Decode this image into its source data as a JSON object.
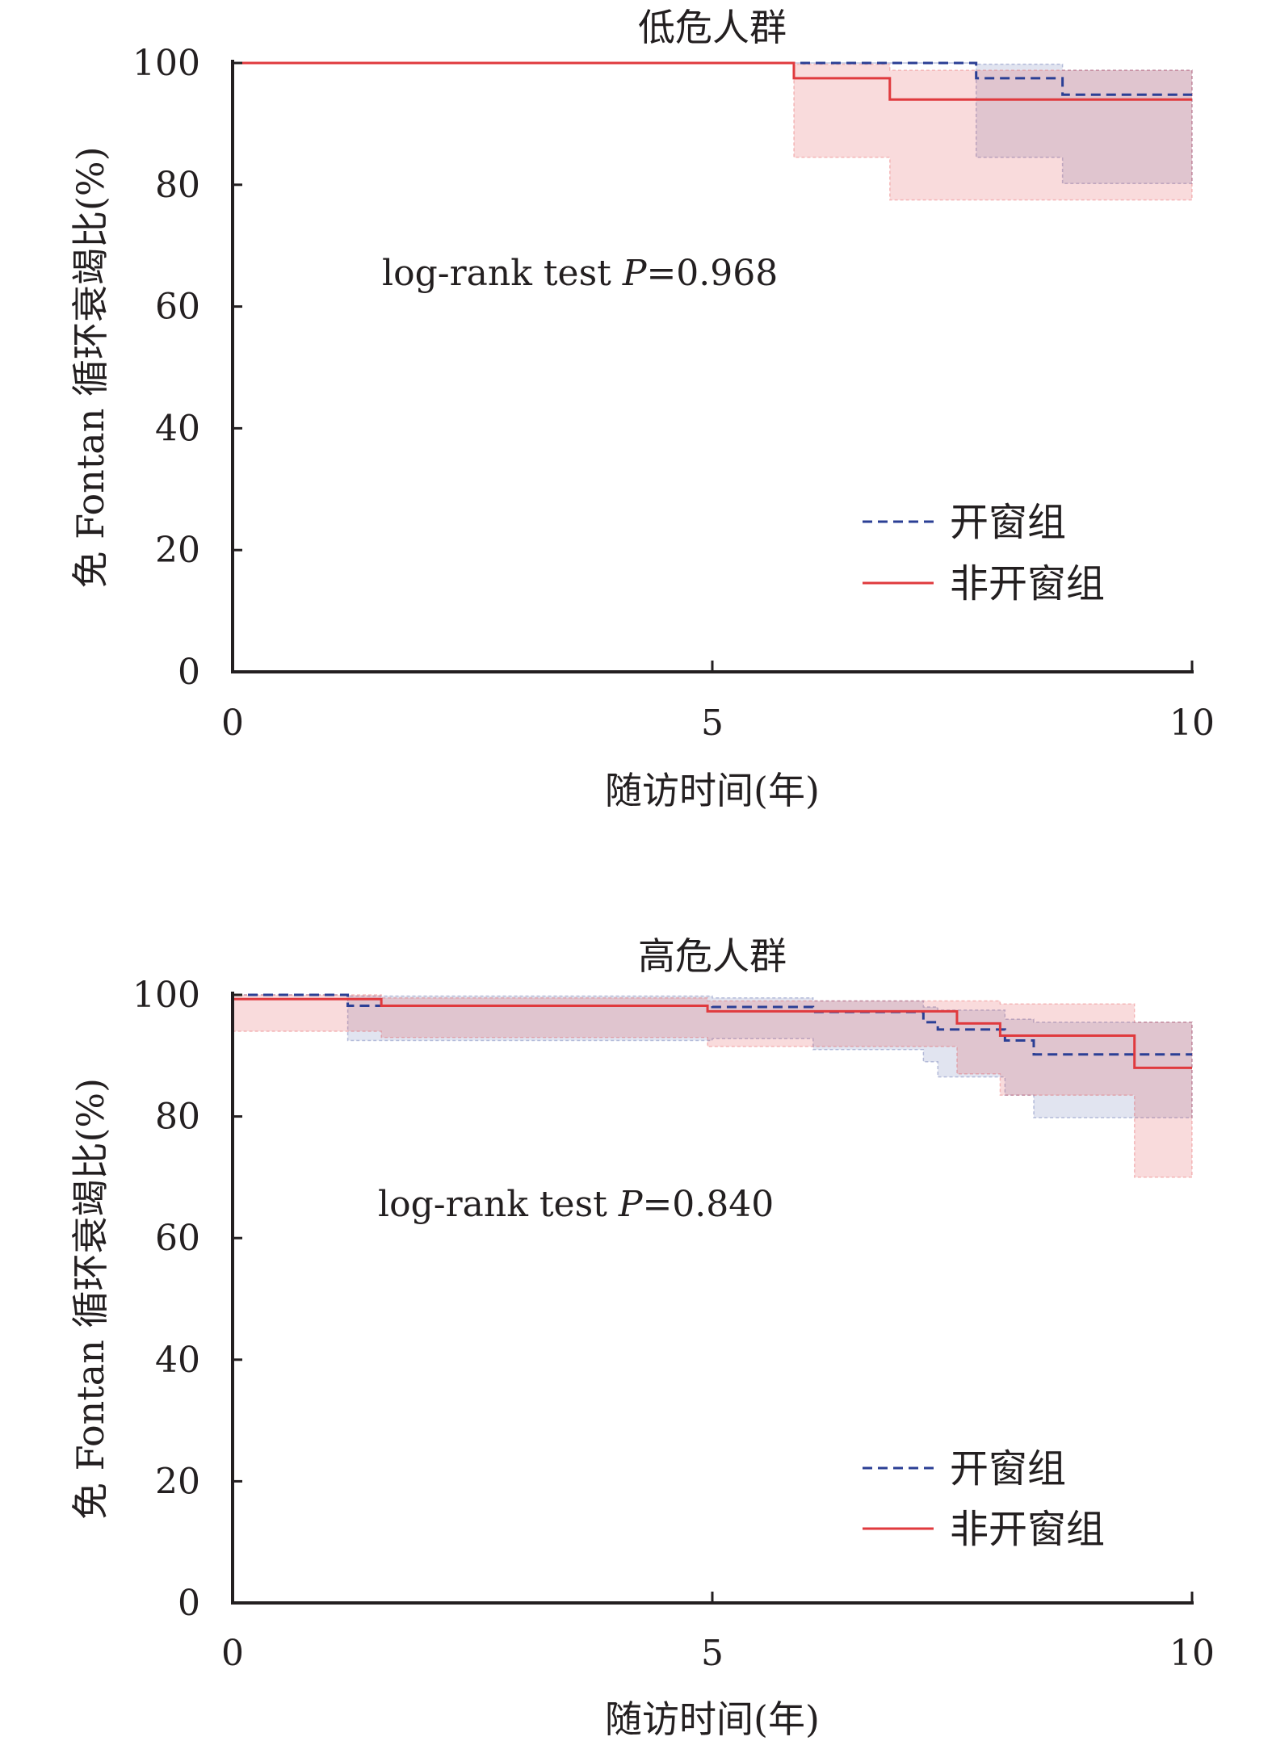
{
  "chart_data": [
    {
      "type": "line",
      "subtype": "kaplan-meier-step",
      "title": "低危人群",
      "xlabel": "随访时间(年)",
      "ylabel": "免 Fontan 循环衰竭比(%)",
      "xlim": [
        0,
        10
      ],
      "ylim": [
        0,
        100
      ],
      "xticks": [
        0,
        5,
        10
      ],
      "yticks": [
        0,
        20,
        40,
        60,
        80,
        100
      ],
      "grid": false,
      "legend_position": "bottom-right",
      "annotation": {
        "prefix": "log-rank test ",
        "italic": "P",
        "suffix": "=0.968"
      },
      "series": [
        {
          "name": "开窗组",
          "color": "#2b3f95",
          "dash": true,
          "steps": [
            [
              0,
              100
            ],
            [
              7.75,
              97.5
            ],
            [
              8.65,
              94.8
            ],
            [
              10,
              94.8
            ]
          ],
          "ci": [
            [
              0,
              100,
              100
            ],
            [
              7.75,
              84.5,
              99.8
            ],
            [
              8.65,
              80.2,
              98.8
            ],
            [
              10,
              80.2,
              98.8
            ]
          ]
        },
        {
          "name": "非开窗组",
          "color": "#e03a3e",
          "dash": false,
          "steps": [
            [
              0,
              100
            ],
            [
              5.85,
              97.5
            ],
            [
              6.85,
              94.0
            ],
            [
              10,
              94.0
            ]
          ],
          "ci": [
            [
              0,
              100,
              100
            ],
            [
              5.85,
              84.5,
              99.8
            ],
            [
              6.85,
              77.5,
              98.8
            ],
            [
              10,
              77.5,
              98.8
            ]
          ]
        }
      ]
    },
    {
      "type": "line",
      "subtype": "kaplan-meier-step",
      "title": "高危人群",
      "xlabel": "随访时间(年)",
      "ylabel": "免 Fontan 循环衰竭比(%)",
      "xlim": [
        0,
        10
      ],
      "ylim": [
        0,
        100
      ],
      "xticks": [
        0,
        5,
        10
      ],
      "yticks": [
        0,
        20,
        40,
        60,
        80,
        100
      ],
      "grid": false,
      "legend_position": "bottom-right",
      "annotation": {
        "prefix": "log-rank test ",
        "italic": "P",
        "suffix": "=0.840"
      },
      "series": [
        {
          "name": "开窗组",
          "color": "#2b3f95",
          "dash": true,
          "steps": [
            [
              0,
              100
            ],
            [
              1.2,
              98.2
            ],
            [
              5.0,
              98.0
            ],
            [
              6.05,
              97.2
            ],
            [
              7.2,
              95.5
            ],
            [
              7.35,
              94.3
            ],
            [
              8.05,
              92.5
            ],
            [
              8.35,
              90.2
            ],
            [
              10,
              90.2
            ]
          ],
          "ci": [
            [
              0,
              100,
              100
            ],
            [
              1.2,
              92.5,
              99.8
            ],
            [
              5.0,
              92.8,
              99.5
            ],
            [
              6.05,
              91.0,
              99.0
            ],
            [
              7.2,
              89.0,
              98.0
            ],
            [
              7.35,
              86.5,
              97.5
            ],
            [
              8.05,
              83.5,
              96.0
            ],
            [
              8.35,
              79.8,
              95.5
            ],
            [
              10,
              79.8,
              95.5
            ]
          ]
        },
        {
          "name": "非开窗组",
          "color": "#e03a3e",
          "dash": false,
          "steps": [
            [
              0,
              99.3
            ],
            [
              1.55,
              98.2
            ],
            [
              4.95,
              97.3
            ],
            [
              7.55,
              95.3
            ],
            [
              8.0,
              93.3
            ],
            [
              9.4,
              88.0
            ],
            [
              10,
              88.0
            ]
          ],
          "ci": [
            [
              0,
              94.0,
              100
            ],
            [
              1.55,
              93.0,
              99.5
            ],
            [
              4.95,
              91.5,
              99.0
            ],
            [
              7.55,
              87.0,
              99.0
            ],
            [
              8.0,
              83.5,
              98.5
            ],
            [
              9.4,
              70.0,
              95.5
            ],
            [
              10,
              70.0,
              95.5
            ]
          ]
        }
      ]
    }
  ]
}
